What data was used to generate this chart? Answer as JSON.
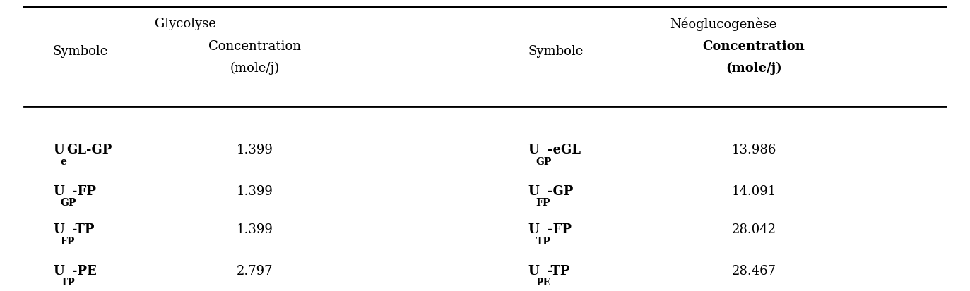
{
  "title": "",
  "glycolyse_header": "Glycolyse",
  "neogluco_header": "Néoglucogenèse",
  "col_headers": [
    "Symbole",
    "Concentration\n(mole/j)",
    "Symbole",
    "Concentration\n(mole/j)"
  ],
  "col_headers_bold": [
    false,
    false,
    false,
    true
  ],
  "rows": [
    {
      "glyco_sym": [
        "U",
        "e",
        "GL-GP"
      ],
      "glyco_val": "1.399",
      "neo_sym": [
        "U",
        "GP",
        "-eGL"
      ],
      "neo_val": "13.986"
    },
    {
      "glyco_sym": [
        "U",
        "GP",
        "-FP"
      ],
      "glyco_val": "1.399",
      "neo_sym": [
        "U",
        "FP",
        "-GP"
      ],
      "neo_val": "14.091"
    },
    {
      "glyco_sym": [
        "U",
        "FP",
        "-TP"
      ],
      "glyco_val": "1.399",
      "neo_sym": [
        "U",
        "TP",
        "-FP"
      ],
      "neo_val": "28.042"
    },
    {
      "glyco_sym": [
        "U",
        "TP",
        "-PE"
      ],
      "glyco_val": "2.797",
      "neo_sym": [
        "U",
        "PE",
        "-TP"
      ],
      "neo_val": "28.467"
    }
  ],
  "bg_color": "#ffffff",
  "text_color": "#000000",
  "font_size": 13,
  "header_font_size": 13
}
